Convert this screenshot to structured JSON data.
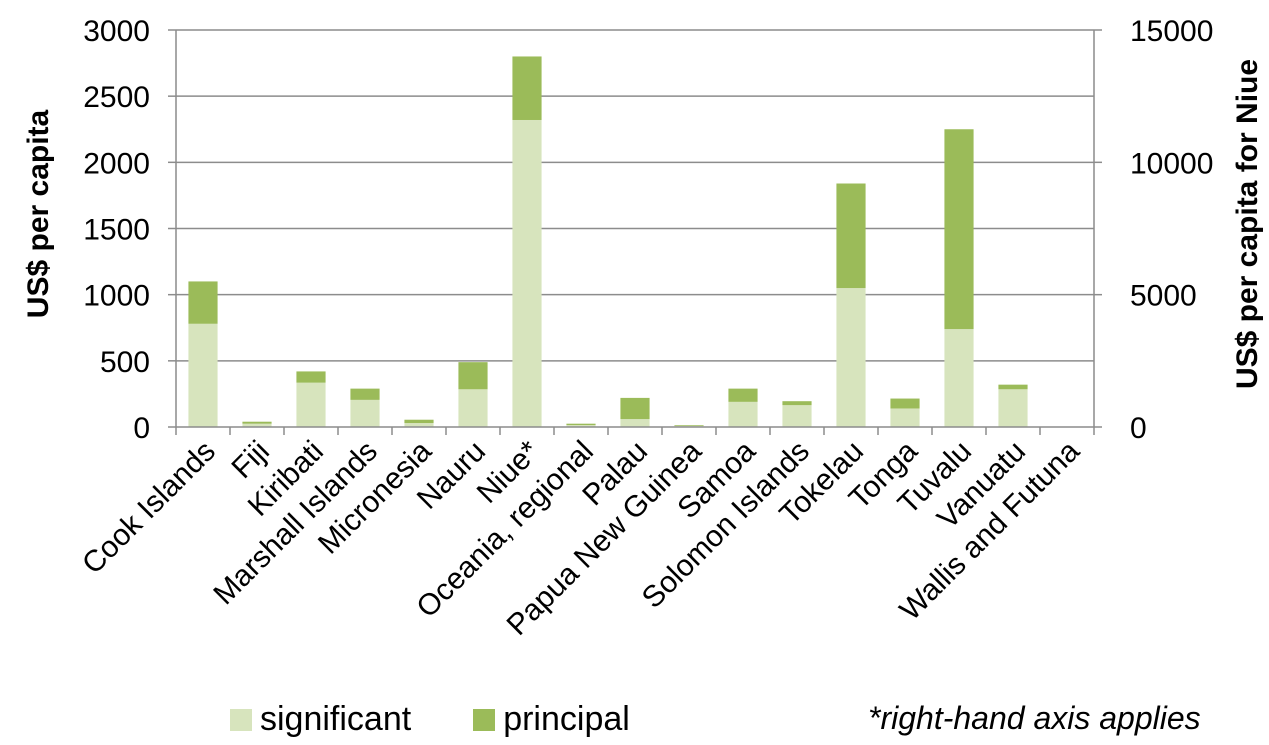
{
  "chart_data": {
    "type": "bar",
    "stacked": true,
    "categories": [
      "Cook Islands",
      "Fiji",
      "Kiribati",
      "Marshall Islands",
      "Micronesia",
      "Nauru",
      "Niue*",
      "Oceania, regional",
      "Palau",
      "Papua New Guinea",
      "Samoa",
      "Solomon Islands",
      "Tokelau",
      "Tonga",
      "Tuvalu",
      "Vanuatu",
      "Wallis and Futuna"
    ],
    "series": [
      {
        "name": "significant",
        "color": "#d7e4bd",
        "values": [
          780,
          25,
          335,
          205,
          30,
          285,
          11600,
          15,
          60,
          10,
          190,
          165,
          1050,
          140,
          740,
          285,
          0
        ]
      },
      {
        "name": "principal",
        "color": "#9bbb59",
        "values": [
          320,
          15,
          85,
          85,
          25,
          205,
          2400,
          10,
          160,
          5,
          100,
          30,
          790,
          75,
          1510,
          35,
          0
        ]
      }
    ],
    "right_axis_categories": [
      "Niue*"
    ],
    "ylabel": "US$ per capita",
    "ylim": [
      0,
      3000
    ],
    "yticks": [
      "0",
      "500",
      "1000",
      "1500",
      "2000",
      "2500",
      "3000"
    ],
    "y2label": "US$ per capita for Niue",
    "y2lim": [
      0,
      15000
    ],
    "y2ticks": [
      "0",
      "5000",
      "10000",
      "15000"
    ],
    "grid": true,
    "legend_position": "bottom",
    "footnote": "*right-hand axis applies"
  }
}
